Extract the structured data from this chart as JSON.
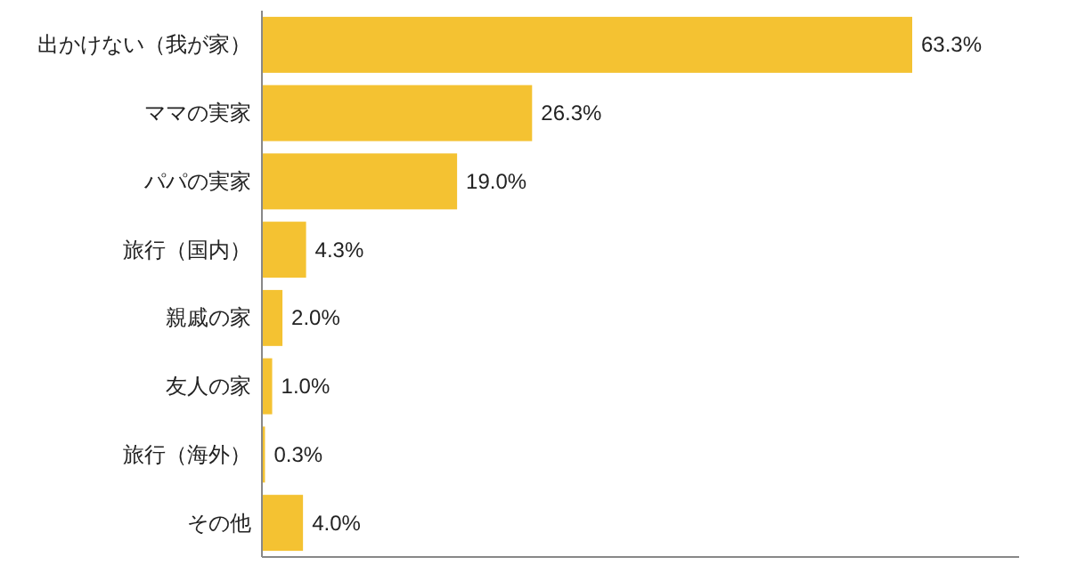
{
  "chart_data": {
    "type": "bar",
    "orientation": "horizontal",
    "categories": [
      "出かけない（我が家）",
      "ママの実家",
      "パパの実家",
      "旅行（国内）",
      "親戚の家",
      "友人の家",
      "旅行（海外）",
      "その他"
    ],
    "values": [
      63.3,
      26.3,
      19.0,
      4.3,
      2.0,
      1.0,
      0.3,
      4.0
    ],
    "value_labels": [
      "63.3%",
      "26.3%",
      "19.0%",
      "4.3%",
      "2.0%",
      "1.0%",
      "0.3%",
      "4.0%"
    ],
    "color": "#f4c232"
  }
}
